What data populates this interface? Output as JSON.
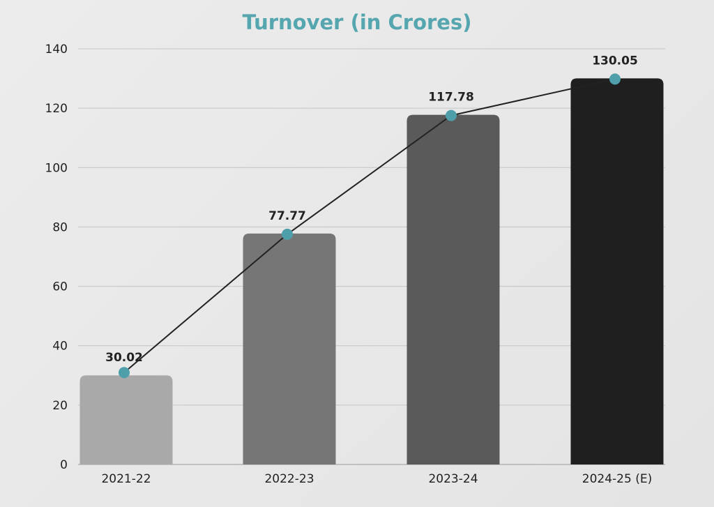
{
  "chart_data": {
    "type": "bar",
    "title": "Turnover (in Crores)",
    "xlabel": "",
    "ylabel": "",
    "categories": [
      "2021-22",
      "2022-23",
      "2023-24",
      "2024-25 (E)"
    ],
    "values": [
      30.02,
      77.77,
      117.78,
      130.05
    ],
    "data_labels": [
      "30.02",
      "77.77",
      "117.78",
      "130.05"
    ],
    "ylim": [
      0,
      140
    ],
    "yticks": [
      0,
      20,
      40,
      60,
      80,
      100,
      120,
      140
    ],
    "grid": true,
    "overlay_line": true,
    "colors": {
      "bars": [
        "#a9a9a9",
        "#767676",
        "#5a5a5a",
        "#1f1f1f"
      ],
      "line": "#222222",
      "markers": "#4f9fab",
      "title": "#56a6b0"
    }
  }
}
